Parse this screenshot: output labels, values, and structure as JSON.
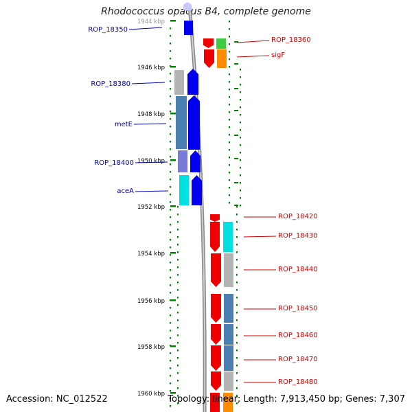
{
  "title": "Rhodococcus opacus B4, complete genome",
  "footer": {
    "accession": "Accession: NC_012522",
    "topology": "Topology: linear; Length: 7,913,450 bp; Genes: 7,307"
  },
  "scale_labels": [
    "1944 kbp",
    "1946 kbp",
    "1948 kbp",
    "1950 kbp",
    "1952 kbp",
    "1954 kbp",
    "1956 kbp",
    "1958 kbp",
    "1960 kbp"
  ],
  "gene_labels_left": [
    "ROP_18350",
    "ROP_18380",
    "metE",
    "ROP_18400",
    "aceA"
  ],
  "gene_labels_right": [
    "ROP_18360",
    "sigF",
    "ROP_18420",
    "ROP_18430",
    "ROP_18440",
    "ROP_18450",
    "ROP_18460",
    "ROP_18470",
    "ROP_18480"
  ],
  "colors": {
    "minus_strand": "#0000ee",
    "plus_strand": "#ee0000",
    "left_label": "#0000aa",
    "right_label": "#cc0000",
    "tick": "#008000",
    "backbone": "#888888",
    "cog_grey": "#b4b4b4",
    "cog_steel": "#4a7fb0",
    "cog_purple": "#7a7ad8",
    "cog_cyan": "#00e0e0",
    "cog_green": "#40cc40",
    "cog_orange": "#ff8c00"
  }
}
